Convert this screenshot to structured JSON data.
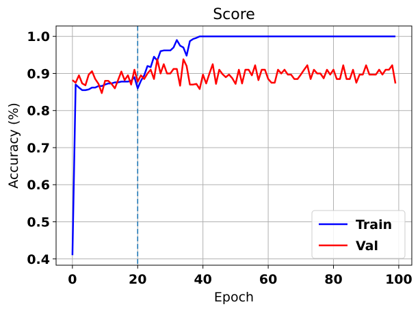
{
  "chart_data": {
    "type": "line",
    "title": "Score",
    "xlabel": "Epoch",
    "ylabel": "Accuracy (%)",
    "xlim": [
      -5,
      104
    ],
    "ylim": [
      0.383,
      1.028
    ],
    "xticks": [
      0,
      20,
      40,
      60,
      80,
      100
    ],
    "yticks": [
      0.4,
      0.5,
      0.6,
      0.7,
      0.8,
      0.9,
      1.0
    ],
    "xtick_labels": [
      "0",
      "20",
      "40",
      "60",
      "80",
      "100"
    ],
    "ytick_labels": [
      "0.4",
      "0.5",
      "0.6",
      "0.7",
      "0.8",
      "0.9",
      "1.0"
    ],
    "grid": true,
    "legend_position": "bottom-right",
    "reference_line": {
      "x": 20,
      "style": "dashed",
      "color": "#1f77b4"
    },
    "series": [
      {
        "name": "Train",
        "color": "#0000ff",
        "x": [
          0,
          1,
          2,
          3,
          4,
          5,
          6,
          7,
          8,
          9,
          10,
          11,
          12,
          13,
          14,
          15,
          16,
          17,
          18,
          19,
          20,
          21,
          22,
          23,
          24,
          25,
          26,
          27,
          28,
          29,
          30,
          31,
          32,
          33,
          34,
          35,
          36,
          37,
          38,
          39,
          40,
          41,
          42,
          43,
          44,
          45,
          46,
          47,
          48,
          49,
          50,
          51,
          52,
          53,
          54,
          55,
          56,
          57,
          58,
          59,
          60,
          61,
          62,
          63,
          64,
          65,
          66,
          67,
          68,
          69,
          70,
          71,
          72,
          73,
          74,
          75,
          76,
          77,
          78,
          79,
          80,
          81,
          82,
          83,
          84,
          85,
          86,
          87,
          88,
          89,
          90,
          91,
          92,
          93,
          94,
          95,
          96,
          97,
          98,
          99
        ],
        "y": [
          0.41,
          0.87,
          0.862,
          0.855,
          0.855,
          0.857,
          0.862,
          0.862,
          0.866,
          0.866,
          0.87,
          0.873,
          0.873,
          0.876,
          0.876,
          0.878,
          0.878,
          0.878,
          0.88,
          0.89,
          0.86,
          0.88,
          0.895,
          0.92,
          0.917,
          0.945,
          0.935,
          0.96,
          0.962,
          0.962,
          0.962,
          0.97,
          0.99,
          0.975,
          0.97,
          0.948,
          0.987,
          0.993,
          0.996,
          1.0,
          1.0,
          1.0,
          1.0,
          1.0,
          1.0,
          1.0,
          1.0,
          1.0,
          1.0,
          1.0,
          1.0,
          1.0,
          1.0,
          1.0,
          1.0,
          1.0,
          1.0,
          1.0,
          1.0,
          1.0,
          1.0,
          1.0,
          1.0,
          1.0,
          1.0,
          1.0,
          1.0,
          1.0,
          1.0,
          1.0,
          1.0,
          1.0,
          1.0,
          1.0,
          1.0,
          1.0,
          1.0,
          1.0,
          1.0,
          1.0,
          1.0,
          1.0,
          1.0,
          1.0,
          1.0,
          1.0,
          1.0,
          1.0,
          1.0,
          1.0,
          1.0,
          1.0,
          1.0,
          1.0,
          1.0,
          1.0,
          1.0,
          1.0,
          1.0,
          1.0
        ]
      },
      {
        "name": "Val",
        "color": "#ff0000",
        "x": [
          0,
          1,
          2,
          3,
          4,
          5,
          6,
          7,
          8,
          9,
          10,
          11,
          12,
          13,
          14,
          15,
          16,
          17,
          18,
          19,
          20,
          21,
          22,
          23,
          24,
          25,
          26,
          27,
          28,
          29,
          30,
          31,
          32,
          33,
          34,
          35,
          36,
          37,
          38,
          39,
          40,
          41,
          42,
          43,
          44,
          45,
          46,
          47,
          48,
          49,
          50,
          51,
          52,
          53,
          54,
          55,
          56,
          57,
          58,
          59,
          60,
          61,
          62,
          63,
          64,
          65,
          66,
          67,
          68,
          69,
          70,
          71,
          72,
          73,
          74,
          75,
          76,
          77,
          78,
          79,
          80,
          81,
          82,
          83,
          84,
          85,
          86,
          87,
          88,
          89,
          90,
          91,
          92,
          93,
          94,
          95,
          96,
          97,
          98,
          99
        ],
        "y": [
          0.882,
          0.875,
          0.895,
          0.873,
          0.868,
          0.897,
          0.906,
          0.885,
          0.872,
          0.847,
          0.88,
          0.88,
          0.872,
          0.86,
          0.882,
          0.905,
          0.882,
          0.895,
          0.87,
          0.91,
          0.878,
          0.895,
          0.885,
          0.9,
          0.91,
          0.885,
          0.938,
          0.9,
          0.925,
          0.9,
          0.9,
          0.912,
          0.912,
          0.867,
          0.938,
          0.92,
          0.87,
          0.87,
          0.872,
          0.858,
          0.897,
          0.873,
          0.9,
          0.925,
          0.872,
          0.91,
          0.898,
          0.89,
          0.897,
          0.887,
          0.872,
          0.91,
          0.873,
          0.91,
          0.91,
          0.895,
          0.922,
          0.882,
          0.91,
          0.91,
          0.885,
          0.875,
          0.875,
          0.91,
          0.9,
          0.91,
          0.897,
          0.897,
          0.885,
          0.885,
          0.897,
          0.91,
          0.922,
          0.885,
          0.91,
          0.9,
          0.9,
          0.887,
          0.91,
          0.897,
          0.91,
          0.885,
          0.885,
          0.922,
          0.885,
          0.885,
          0.91,
          0.875,
          0.897,
          0.897,
          0.922,
          0.897,
          0.897,
          0.897,
          0.91,
          0.897,
          0.91,
          0.91,
          0.922,
          0.873
        ]
      }
    ]
  }
}
